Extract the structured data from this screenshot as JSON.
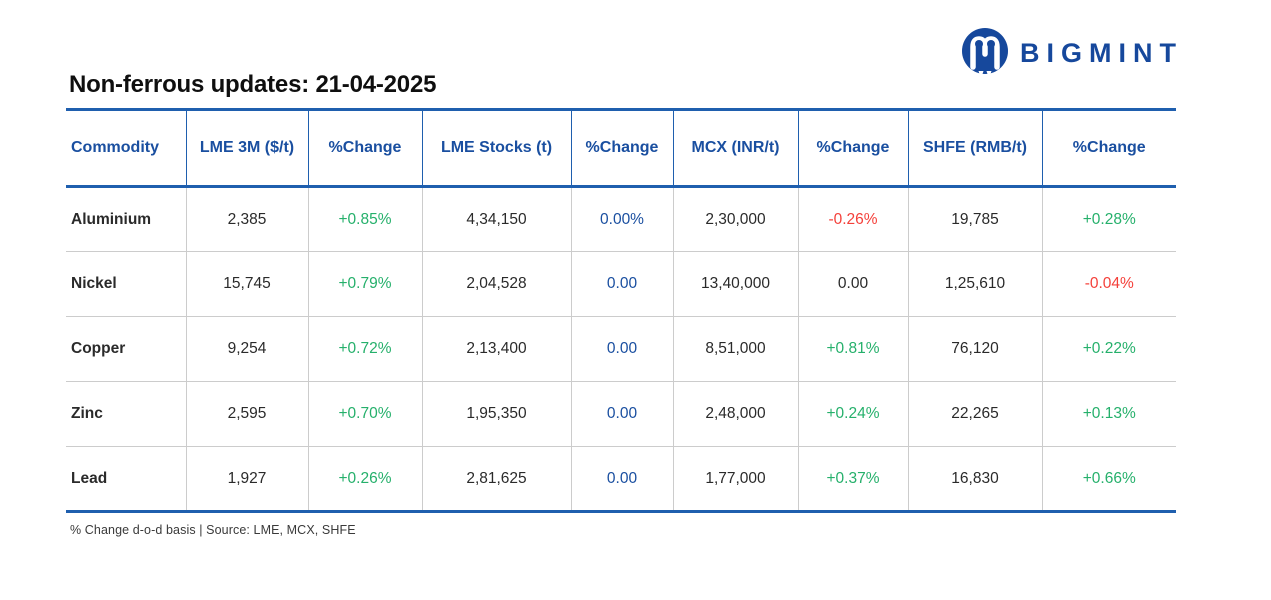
{
  "brand": {
    "name": "BIGMINT"
  },
  "title": "Non-ferrous updates: 21-04-2025",
  "footer_note": "% Change d-o-d basis | Source: LME, MCX, SHFE",
  "colors": {
    "brand_blue": "#16489c",
    "header_blue": "#1a4fa0",
    "border_blue": "#1f5fae",
    "green": "#25b06b",
    "red": "#f4403a",
    "grid_gray": "#cccccc",
    "text_dark": "#2a2a2a"
  },
  "table": {
    "columns": [
      "Commodity",
      "LME 3M ($/t)",
      "%Change",
      "LME Stocks (t)",
      "%Change",
      "MCX (INR/t)",
      "%Change",
      "SHFE (RMB/t)",
      "%Change"
    ],
    "rows": [
      {
        "cells": [
          {
            "text": "Aluminium",
            "color": "black"
          },
          {
            "text": "2,385",
            "color": "black"
          },
          {
            "text": "+0.85%",
            "color": "green"
          },
          {
            "text": "4,34,150",
            "color": "black"
          },
          {
            "text": "0.00%",
            "color": "blue"
          },
          {
            "text": "2,30,000",
            "color": "black"
          },
          {
            "text": "-0.26%",
            "color": "red"
          },
          {
            "text": "19,785",
            "color": "black"
          },
          {
            "text": "+0.28%",
            "color": "green"
          }
        ]
      },
      {
        "cells": [
          {
            "text": "Nickel",
            "color": "black"
          },
          {
            "text": "15,745",
            "color": "black"
          },
          {
            "text": "+0.79%",
            "color": "green"
          },
          {
            "text": "2,04,528",
            "color": "black"
          },
          {
            "text": "0.00",
            "color": "blue"
          },
          {
            "text": "13,40,000",
            "color": "black"
          },
          {
            "text": "0.00",
            "color": "black"
          },
          {
            "text": "1,25,610",
            "color": "black"
          },
          {
            "text": "-0.04%",
            "color": "red"
          }
        ]
      },
      {
        "cells": [
          {
            "text": "Copper",
            "color": "black"
          },
          {
            "text": "9,254",
            "color": "black"
          },
          {
            "text": "+0.72%",
            "color": "green"
          },
          {
            "text": "2,13,400",
            "color": "black"
          },
          {
            "text": "0.00",
            "color": "blue"
          },
          {
            "text": "8,51,000",
            "color": "black"
          },
          {
            "text": "+0.81%",
            "color": "green"
          },
          {
            "text": "76,120",
            "color": "black"
          },
          {
            "text": "+0.22%",
            "color": "green"
          }
        ]
      },
      {
        "cells": [
          {
            "text": "Zinc",
            "color": "black"
          },
          {
            "text": "2,595",
            "color": "black"
          },
          {
            "text": "+0.70%",
            "color": "green"
          },
          {
            "text": "1,95,350",
            "color": "black"
          },
          {
            "text": "0.00",
            "color": "blue"
          },
          {
            "text": "2,48,000",
            "color": "black"
          },
          {
            "text": "+0.24%",
            "color": "green"
          },
          {
            "text": "22,265",
            "color": "black"
          },
          {
            "text": "+0.13%",
            "color": "green"
          }
        ]
      },
      {
        "cells": [
          {
            "text": "Lead",
            "color": "black"
          },
          {
            "text": "1,927",
            "color": "black"
          },
          {
            "text": "+0.26%",
            "color": "green"
          },
          {
            "text": "2,81,625",
            "color": "black"
          },
          {
            "text": "0.00",
            "color": "blue"
          },
          {
            "text": "1,77,000",
            "color": "black"
          },
          {
            "text": "+0.37%",
            "color": "green"
          },
          {
            "text": "16,830",
            "color": "black"
          },
          {
            "text": "+0.66%",
            "color": "green"
          }
        ]
      }
    ]
  },
  "chart_data": {
    "type": "table",
    "title": "Non-ferrous updates: 21-04-2025",
    "columns": [
      "Commodity",
      "LME 3M ($/t)",
      "%Change",
      "LME Stocks (t)",
      "%Change",
      "MCX (INR/t)",
      "%Change",
      "SHFE (RMB/t)",
      "%Change"
    ],
    "rows": [
      [
        "Aluminium",
        "2,385",
        "+0.85%",
        "4,34,150",
        "0.00%",
        "2,30,000",
        "-0.26%",
        "19,785",
        "+0.28%"
      ],
      [
        "Nickel",
        "15,745",
        "+0.79%",
        "2,04,528",
        "0.00",
        "13,40,000",
        "0.00",
        "1,25,610",
        "-0.04%"
      ],
      [
        "Copper",
        "9,254",
        "+0.72%",
        "2,13,400",
        "0.00",
        "8,51,000",
        "+0.81%",
        "76,120",
        "+0.22%"
      ],
      [
        "Zinc",
        "2,595",
        "+0.70%",
        "1,95,350",
        "0.00",
        "2,48,000",
        "+0.24%",
        "22,265",
        "+0.13%"
      ],
      [
        "Lead",
        "1,927",
        "+0.26%",
        "2,81,625",
        "0.00",
        "1,77,000",
        "+0.37%",
        "16,830",
        "+0.66%"
      ]
    ]
  }
}
